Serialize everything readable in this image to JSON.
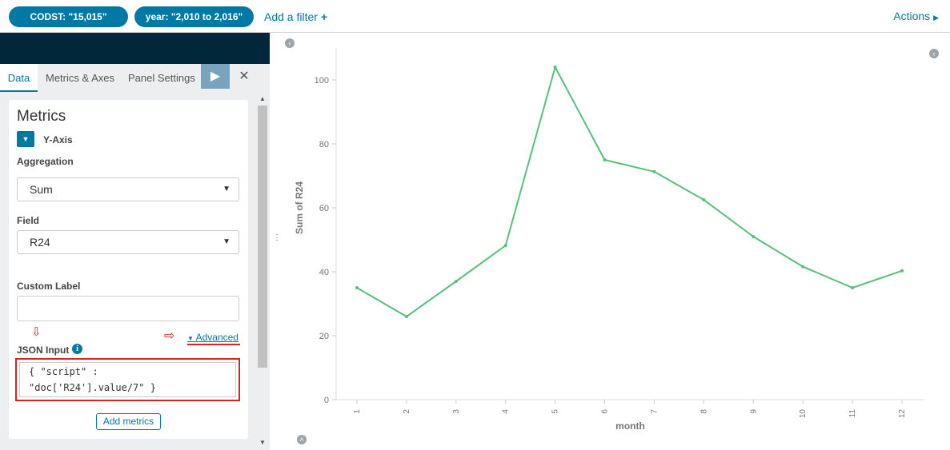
{
  "filterbar": {
    "filters": [
      "CODST: \"15,015\"",
      "year: \"2,010 to 2,016\""
    ],
    "add_filter": "Add a filter",
    "add_filter_icon": "plus-icon",
    "actions": "Actions",
    "actions_icon": "caret-right-icon"
  },
  "editor": {
    "tabs": [
      "Data",
      "Metrics & Axes",
      "Panel Settings"
    ],
    "active_tab": "Data",
    "apply_icon": "play-icon",
    "discard_icon": "close-icon",
    "metrics_title": "Metrics",
    "y_axis_label": "Y-Axis",
    "aggregation_label": "Aggregation",
    "aggregation_value": "Sum",
    "field_label": "Field",
    "field_value": "R24",
    "custom_label": "Custom Label",
    "custom_label_value": "",
    "advanced_link": "Advanced",
    "json_input_label": "JSON Input",
    "json_input_line1": "{ \"script\" :",
    "json_input_line2": "\"doc['R24'].value/7\" }",
    "add_metrics": "Add metrics"
  },
  "chart_data": {
    "type": "line",
    "xlabel": "month",
    "ylabel": "Sum of R24",
    "x": [
      1,
      2,
      3,
      4,
      5,
      6,
      7,
      8,
      9,
      10,
      11,
      12
    ],
    "values": [
      35,
      26,
      37,
      48.2,
      104,
      75,
      71.3,
      62.5,
      51,
      41.6,
      35,
      40.3
    ],
    "yticks": [
      0,
      20,
      40,
      60,
      80,
      100
    ],
    "ylim": [
      0,
      110
    ],
    "color": "#57c17b",
    "grid": false
  }
}
